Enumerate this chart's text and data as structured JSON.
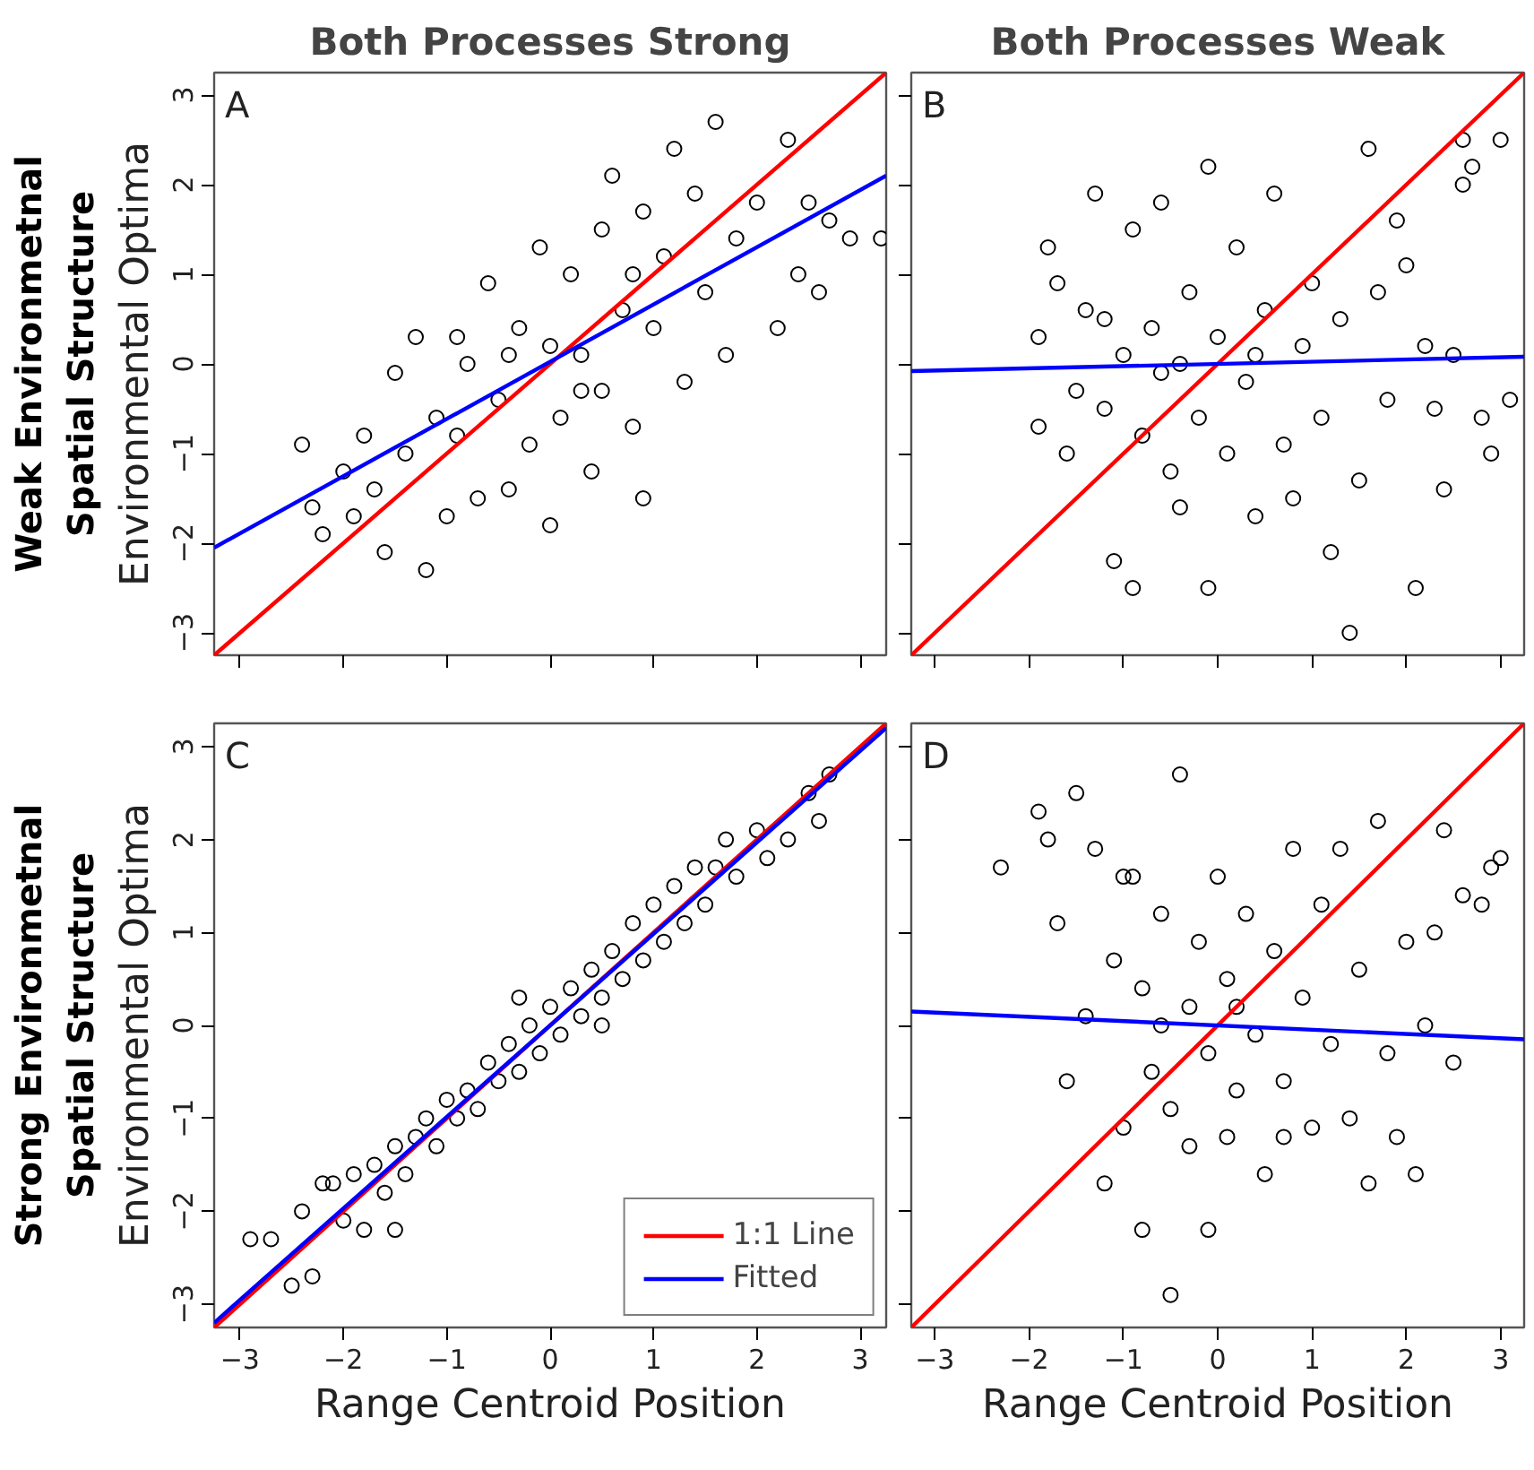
{
  "chart_data": [
    {
      "type": "scatter",
      "title": "Both Processes Strong",
      "ylabel": "Environmental Optima",
      "annotations": [
        "A",
        "Weak Environmetnal Spatial Structure"
      ],
      "xlim": [
        -3.25,
        3.25
      ],
      "ylim": [
        -3.25,
        3.25
      ],
      "xticks": [
        -3,
        -2,
        -1,
        0,
        1,
        2,
        3
      ],
      "yticks": [
        -3,
        -2,
        -1,
        0,
        1,
        2,
        3
      ],
      "tick_labels": "y",
      "grid": false,
      "legend": false,
      "series": [
        {
          "marker": "circle",
          "color": "#000000",
          "x": [
            -2.4,
            -2.3,
            -2.2,
            -2.0,
            -1.9,
            -1.7,
            -1.6,
            -1.5,
            -1.4,
            -1.3,
            -1.2,
            -1.1,
            -1.0,
            -0.9,
            -0.8,
            -0.7,
            -0.6,
            -0.5,
            -0.4,
            -0.3,
            -0.2,
            -0.1,
            0.0,
            0.0,
            0.1,
            0.2,
            0.3,
            0.4,
            0.5,
            0.5,
            0.6,
            0.7,
            0.8,
            0.9,
            0.9,
            1.0,
            1.1,
            1.2,
            1.3,
            1.4,
            1.5,
            1.6,
            1.7,
            1.8,
            2.0,
            2.2,
            2.3,
            2.4,
            2.5,
            2.6,
            2.7,
            2.9,
            3.2,
            -0.4,
            0.3,
            -0.9,
            0.8,
            -1.8
          ],
          "values": [
            -0.9,
            -1.6,
            -1.9,
            -1.2,
            -1.7,
            -1.4,
            -2.1,
            -0.1,
            -1.0,
            0.3,
            -2.3,
            -0.6,
            -1.7,
            -0.8,
            0.0,
            -1.5,
            0.9,
            -0.4,
            -1.4,
            0.4,
            -0.9,
            1.3,
            -1.8,
            0.2,
            -0.6,
            1.0,
            0.1,
            -1.2,
            1.5,
            -0.3,
            2.1,
            0.6,
            -0.7,
            1.7,
            -1.5,
            0.4,
            1.2,
            2.4,
            -0.2,
            1.9,
            0.8,
            2.7,
            0.1,
            1.4,
            1.8,
            0.4,
            2.5,
            1.0,
            1.8,
            0.8,
            1.6,
            1.4,
            1.4,
            0.1,
            -0.3,
            0.3,
            1.0,
            -0.8
          ]
        },
        {
          "type": "line",
          "color": "#ff0000",
          "x": [
            -3.25,
            3.25
          ],
          "values": [
            -3.25,
            3.25
          ]
        },
        {
          "type": "line",
          "color": "#0000ff",
          "x": [
            -3.25,
            3.25
          ],
          "values": [
            -2.05,
            2.1
          ]
        }
      ]
    },
    {
      "type": "scatter",
      "title": "Both Processes Weak",
      "annotations": [
        "B"
      ],
      "xlim": [
        -3.25,
        3.25
      ],
      "ylim": [
        -3.25,
        3.25
      ],
      "xticks": [
        -3,
        -2,
        -1,
        0,
        1,
        2,
        3
      ],
      "yticks": [
        -3,
        -2,
        -1,
        0,
        1,
        2,
        3
      ],
      "tick_labels": false,
      "grid": false,
      "legend": false,
      "series": [
        {
          "marker": "circle",
          "color": "#000000",
          "x": [
            -1.9,
            -1.9,
            -1.8,
            -1.7,
            -1.6,
            -1.5,
            -1.4,
            -1.3,
            -1.2,
            -1.1,
            -1.0,
            -0.9,
            -0.9,
            -0.8,
            -0.7,
            -0.6,
            -0.5,
            -0.4,
            -0.4,
            -0.3,
            -0.2,
            -0.1,
            -0.1,
            0.0,
            0.1,
            0.2,
            0.3,
            0.4,
            0.5,
            0.6,
            0.7,
            0.8,
            0.9,
            1.0,
            1.1,
            1.2,
            1.3,
            1.4,
            1.5,
            1.6,
            1.7,
            1.8,
            2.0,
            2.1,
            2.2,
            2.3,
            2.4,
            2.5,
            2.6,
            2.7,
            2.8,
            2.9,
            3.0,
            3.1,
            -0.6,
            0.4,
            -1.2,
            1.9,
            2.6
          ],
          "values": [
            -0.7,
            0.3,
            1.3,
            0.9,
            -1.0,
            -0.3,
            0.6,
            1.9,
            -0.5,
            -2.2,
            0.1,
            1.5,
            -2.5,
            -0.8,
            0.4,
            1.8,
            -1.2,
            0.0,
            -1.6,
            0.8,
            -0.6,
            2.2,
            -2.5,
            0.3,
            -1.0,
            1.3,
            -0.2,
            -1.7,
            0.6,
            1.9,
            -0.9,
            -1.5,
            0.2,
            0.9,
            -0.6,
            -2.1,
            0.5,
            -3.0,
            -1.3,
            2.4,
            0.8,
            -0.4,
            1.1,
            -2.5,
            0.2,
            -0.5,
            -1.4,
            0.1,
            2.5,
            2.2,
            -0.6,
            -1.0,
            2.5,
            -0.4,
            -0.1,
            0.1,
            0.5,
            1.6,
            2.0
          ]
        },
        {
          "type": "line",
          "color": "#ff0000",
          "x": [
            -3.25,
            3.25
          ],
          "values": [
            -3.25,
            3.25
          ]
        },
        {
          "type": "line",
          "color": "#0000ff",
          "x": [
            -3.25,
            3.25
          ],
          "values": [
            -0.08,
            0.08
          ]
        }
      ]
    },
    {
      "type": "scatter",
      "xlabel": "Range Centroid Position",
      "ylabel": "Environmental Optima",
      "annotations": [
        "C",
        "Strong Environmetnal Spatial Structure"
      ],
      "xlim": [
        -3.25,
        3.25
      ],
      "ylim": [
        -3.25,
        3.25
      ],
      "xticks": [
        -3,
        -2,
        -1,
        0,
        1,
        2,
        3
      ],
      "yticks": [
        -3,
        -2,
        -1,
        0,
        1,
        2,
        3
      ],
      "grid": false,
      "legend": "bottom right",
      "series": [
        {
          "marker": "circle",
          "color": "#000000",
          "x": [
            -2.9,
            -2.7,
            -2.5,
            -2.4,
            -2.3,
            -2.1,
            -2.0,
            -1.9,
            -1.8,
            -1.7,
            -1.6,
            -1.5,
            -1.4,
            -1.3,
            -1.2,
            -1.1,
            -1.0,
            -0.9,
            -0.8,
            -0.7,
            -0.6,
            -0.5,
            -0.4,
            -0.3,
            -0.2,
            -0.1,
            0.0,
            0.1,
            0.2,
            0.3,
            0.4,
            0.5,
            0.6,
            0.7,
            0.8,
            0.9,
            1.0,
            1.1,
            1.2,
            1.3,
            1.4,
            1.5,
            1.6,
            1.7,
            1.8,
            2.0,
            2.1,
            2.3,
            2.5,
            2.6,
            2.7,
            -2.2,
            -1.5,
            0.5,
            -0.3
          ],
          "values": [
            -2.3,
            -2.3,
            -2.8,
            -2.0,
            -2.7,
            -1.7,
            -2.1,
            -1.6,
            -2.2,
            -1.5,
            -1.8,
            -1.3,
            -1.6,
            -1.2,
            -1.0,
            -1.3,
            -0.8,
            -1.0,
            -0.7,
            -0.9,
            -0.4,
            -0.6,
            -0.2,
            -0.5,
            0.0,
            -0.3,
            0.2,
            -0.1,
            0.4,
            0.1,
            0.6,
            0.3,
            0.8,
            0.5,
            1.1,
            0.7,
            1.3,
            0.9,
            1.5,
            1.1,
            1.7,
            1.3,
            1.7,
            2.0,
            1.6,
            2.1,
            1.8,
            2.0,
            2.5,
            2.2,
            2.7,
            -1.7,
            -2.2,
            0.0,
            0.3
          ]
        },
        {
          "type": "line",
          "name": "1:1 Line",
          "color": "#ff0000",
          "x": [
            -3.25,
            3.25
          ],
          "values": [
            -3.25,
            3.25
          ]
        },
        {
          "type": "line",
          "name": "Fitted",
          "color": "#0000ff",
          "x": [
            -3.25,
            3.25
          ],
          "values": [
            -3.2,
            3.2
          ]
        }
      ]
    },
    {
      "type": "scatter",
      "xlabel": "Range Centroid Position",
      "annotations": [
        "D"
      ],
      "xlim": [
        -3.25,
        3.25
      ],
      "ylim": [
        -3.25,
        3.25
      ],
      "xticks": [
        -3,
        -2,
        -1,
        0,
        1,
        2,
        3
      ],
      "yticks": [
        -3,
        -2,
        -1,
        0,
        1,
        2,
        3
      ],
      "tick_labels": "x",
      "grid": false,
      "legend": false,
      "series": [
        {
          "marker": "circle",
          "color": "#000000",
          "x": [
            -2.3,
            -1.9,
            -1.8,
            -1.7,
            -1.6,
            -1.5,
            -1.4,
            -1.3,
            -1.2,
            -1.1,
            -1.0,
            -0.9,
            -0.8,
            -0.8,
            -0.7,
            -0.6,
            -0.5,
            -0.5,
            -0.4,
            -0.3,
            -0.3,
            -0.2,
            -0.1,
            -0.1,
            0.0,
            0.1,
            0.1,
            0.2,
            0.3,
            0.4,
            0.5,
            0.6,
            0.7,
            0.8,
            0.9,
            1.0,
            1.1,
            1.2,
            1.3,
            1.4,
            1.5,
            1.6,
            1.7,
            1.8,
            1.9,
            2.0,
            2.1,
            2.2,
            2.3,
            2.4,
            2.5,
            2.6,
            2.8,
            2.9,
            3.0,
            -0.6,
            0.2,
            -1.0,
            0.7
          ],
          "values": [
            1.7,
            2.3,
            2.0,
            1.1,
            -0.6,
            2.5,
            0.1,
            1.9,
            -1.7,
            0.7,
            -1.1,
            1.6,
            -2.2,
            0.4,
            -0.5,
            1.2,
            -0.9,
            -2.9,
            2.7,
            0.2,
            -1.3,
            0.9,
            -0.3,
            -2.2,
            1.6,
            -1.2,
            0.5,
            -0.7,
            1.2,
            -0.1,
            -1.6,
            0.8,
            -0.6,
            1.9,
            0.3,
            -1.1,
            1.3,
            -0.2,
            1.9,
            -1.0,
            0.6,
            -1.7,
            2.2,
            -0.3,
            -1.2,
            0.9,
            -1.6,
            0.0,
            1.0,
            2.1,
            -0.4,
            1.4,
            1.3,
            1.7,
            1.8,
            0.0,
            0.2,
            1.6,
            -1.2
          ]
        },
        {
          "type": "line",
          "color": "#ff0000",
          "x": [
            -3.25,
            3.25
          ],
          "values": [
            -3.25,
            3.25
          ]
        },
        {
          "type": "line",
          "color": "#0000ff",
          "x": [
            -3.25,
            3.25
          ],
          "values": [
            0.15,
            -0.15
          ]
        }
      ]
    }
  ]
}
